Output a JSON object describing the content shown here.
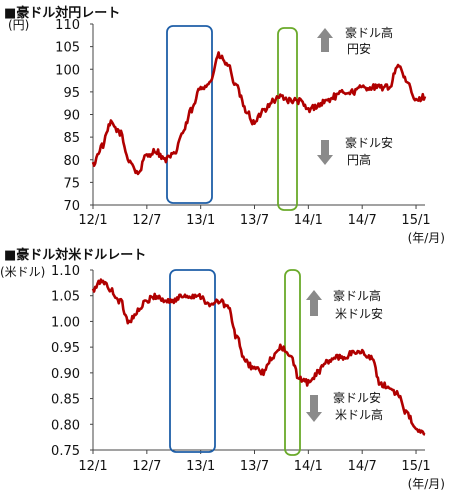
{
  "chart_data": [
    {
      "type": "line",
      "title": "■豪ドル対円レート",
      "ylabel": "(円)",
      "xlabel": "(年/月)",
      "ylim": [
        70,
        110
      ],
      "yticks": [
        "110",
        "105",
        "100",
        "95",
        "90",
        "85",
        "80",
        "75",
        "70"
      ],
      "xticks": [
        "12/1",
        "12/7",
        "13/1",
        "13/7",
        "14/1",
        "14/7",
        "15/1"
      ],
      "line_color": "#b00000",
      "annotations": {
        "up": [
          "豪ドル高",
          "円安"
        ],
        "down": [
          "豪ドル安",
          "円高"
        ]
      },
      "highlight_colors": [
        "#1f5fa8",
        "#6aaa2a"
      ],
      "series": [
        {
          "x": [
            "2012-01",
            "2012-02",
            "2012-03",
            "2012-04",
            "2012-05",
            "2012-06",
            "2012-07",
            "2012-08",
            "2012-09",
            "2012-10",
            "2012-11",
            "2012-12",
            "2013-01",
            "2013-02",
            "2013-03",
            "2013-04",
            "2013-05",
            "2013-06",
            "2013-07",
            "2013-08",
            "2013-09",
            "2013-10",
            "2013-11",
            "2013-12",
            "2014-01",
            "2014-02",
            "2014-03",
            "2014-04",
            "2014-05",
            "2014-06",
            "2014-07",
            "2014-08",
            "2014-09",
            "2014-10",
            "2014-11",
            "2014-12",
            "2015-01",
            "2015-02"
          ],
          "values": [
            79,
            83,
            88,
            86,
            80,
            77,
            81,
            82,
            80,
            81,
            86,
            91,
            96,
            97,
            103,
            101,
            96,
            91,
            88,
            91,
            93,
            94,
            93,
            93,
            91,
            92,
            93,
            94,
            95,
            95,
            96,
            96,
            96,
            96,
            101,
            97,
            93,
            94
          ]
        }
      ]
    },
    {
      "type": "line",
      "title": "■豪ドル対米ドルレート",
      "ylabel": "(米ドル)",
      "xlabel": "(年/月)",
      "ylim": [
        0.75,
        1.1
      ],
      "yticks": [
        "1.10",
        "1.05",
        "1.00",
        "0.95",
        "0.90",
        "0.85",
        "0.80",
        "0.75"
      ],
      "xticks": [
        "12/1",
        "12/7",
        "13/1",
        "13/7",
        "14/1",
        "14/7",
        "15/1"
      ],
      "line_color": "#b00000",
      "annotations": {
        "up": [
          "豪ドル高",
          "米ドル安"
        ],
        "down": [
          "豪ドル安",
          "米ドル高"
        ]
      },
      "highlight_colors": [
        "#1f5fa8",
        "#6aaa2a"
      ],
      "series": [
        {
          "x": [
            "2012-01",
            "2012-02",
            "2012-03",
            "2012-04",
            "2012-05",
            "2012-06",
            "2012-07",
            "2012-08",
            "2012-09",
            "2012-10",
            "2012-11",
            "2012-12",
            "2013-01",
            "2013-02",
            "2013-03",
            "2013-04",
            "2013-05",
            "2013-06",
            "2013-07",
            "2013-08",
            "2013-09",
            "2013-10",
            "2013-11",
            "2013-12",
            "2014-01",
            "2014-02",
            "2014-03",
            "2014-04",
            "2014-05",
            "2014-06",
            "2014-07",
            "2014-08",
            "2014-09",
            "2014-10",
            "2014-11",
            "2014-12",
            "2015-01",
            "2015-02"
          ],
          "values": [
            1.06,
            1.08,
            1.06,
            1.04,
            1.0,
            1.02,
            1.04,
            1.05,
            1.04,
            1.04,
            1.05,
            1.05,
            1.05,
            1.03,
            1.04,
            1.03,
            0.97,
            0.92,
            0.91,
            0.9,
            0.93,
            0.95,
            0.93,
            0.89,
            0.88,
            0.9,
            0.92,
            0.93,
            0.93,
            0.94,
            0.94,
            0.93,
            0.88,
            0.87,
            0.86,
            0.82,
            0.79,
            0.78
          ]
        }
      ]
    }
  ]
}
